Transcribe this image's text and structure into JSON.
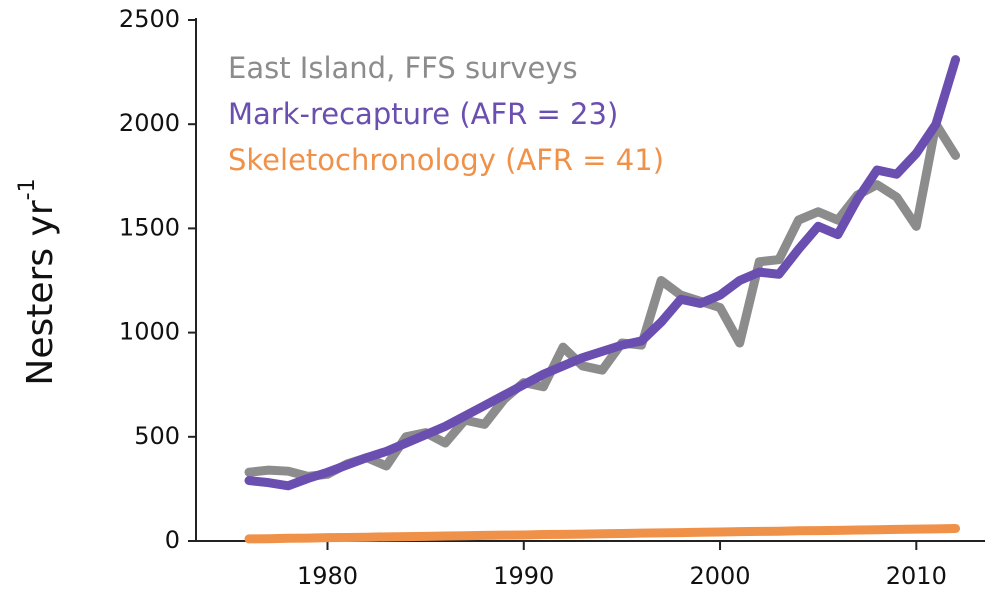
{
  "chart_data": {
    "type": "line",
    "y_label": "Nesters yr",
    "y_label_superscript": "-1",
    "x": [
      1976,
      1977,
      1978,
      1979,
      1980,
      1981,
      1982,
      1983,
      1984,
      1985,
      1986,
      1987,
      1988,
      1989,
      1990,
      1991,
      1992,
      1993,
      1994,
      1995,
      1996,
      1997,
      1998,
      1999,
      2000,
      2001,
      2002,
      2003,
      2004,
      2005,
      2006,
      2007,
      2008,
      2009,
      2010,
      2011,
      2012
    ],
    "series": [
      {
        "name": "East Island, FFS surveys",
        "color": "#8c8c8c",
        "values": [
          330,
          340,
          335,
          310,
          320,
          370,
          400,
          360,
          500,
          520,
          470,
          580,
          560,
          680,
          760,
          740,
          930,
          840,
          820,
          950,
          940,
          1250,
          1180,
          1150,
          1120,
          950,
          1340,
          1350,
          1540,
          1580,
          1540,
          1660,
          1710,
          1650,
          1510,
          2000,
          1850
        ]
      },
      {
        "name": "Mark-recapture (AFR = 23)",
        "color": "#6a4fb0",
        "values": [
          290,
          280,
          265,
          300,
          330,
          365,
          400,
          430,
          470,
          510,
          550,
          600,
          650,
          700,
          750,
          800,
          840,
          880,
          910,
          940,
          960,
          1050,
          1160,
          1140,
          1180,
          1250,
          1290,
          1280,
          1400,
          1510,
          1470,
          1640,
          1780,
          1760,
          1860,
          2000,
          2310
        ]
      },
      {
        "name": "Skeletochronology (AFR = 41)",
        "color": "#f0914a",
        "values": [
          10,
          11,
          13,
          14,
          16,
          17,
          18,
          20,
          21,
          22,
          24,
          25,
          27,
          28,
          29,
          31,
          32,
          33,
          35,
          36,
          38,
          39,
          40,
          42,
          43,
          45,
          46,
          47,
          49,
          50,
          51,
          53,
          54,
          56,
          57,
          58,
          60
        ]
      }
    ],
    "xlim": [
      1973.3,
      2013.5
    ],
    "xticks": [
      1980,
      1990,
      2000,
      2010
    ],
    "ylim": [
      0,
      2500
    ],
    "yticks": [
      0,
      500,
      1000,
      1500,
      2000,
      2500
    ]
  }
}
